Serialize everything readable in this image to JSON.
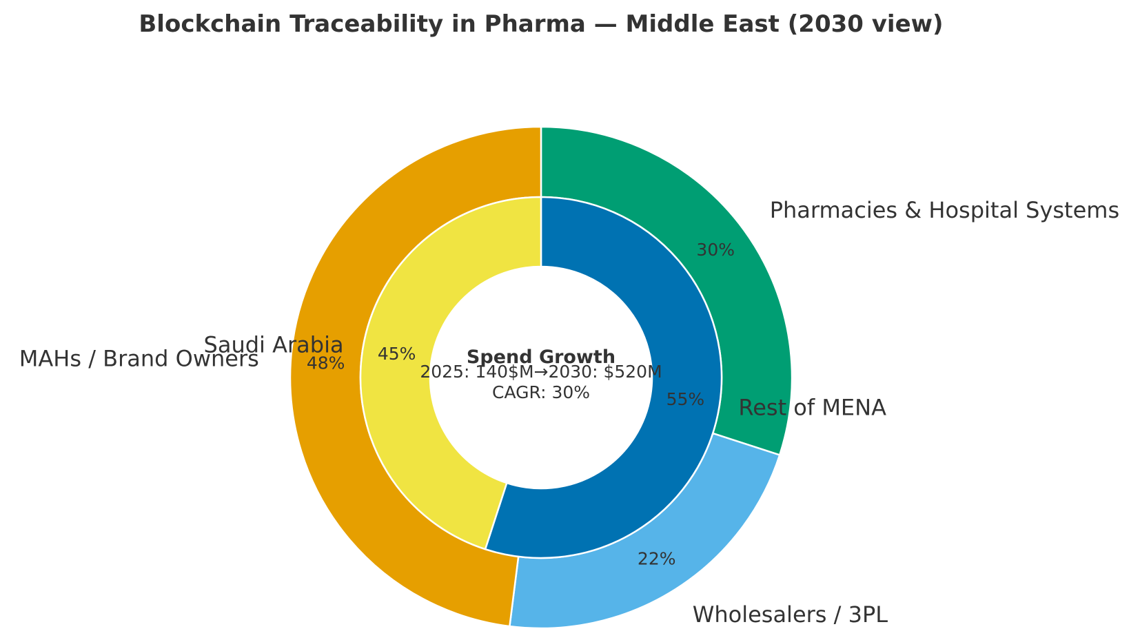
{
  "chart_data": {
    "type": "donut",
    "title": "Blockchain Traceability in Pharma — Middle East (2030 view)",
    "outer_ring": {
      "labels": [
        "Pharmacies & Hospital Systems",
        "Wholesalers / 3PL",
        "MAHs / Brand Owners"
      ],
      "values": [
        30,
        22,
        48
      ],
      "pct_labels": [
        "30%",
        "22%",
        "48%"
      ],
      "colors": [
        "#009E73",
        "#56B4E9",
        "#E69F00"
      ]
    },
    "inner_ring": {
      "labels": [
        "Rest of MENA",
        "Saudi Arabia"
      ],
      "values": [
        55,
        45
      ],
      "pct_labels": [
        "55%",
        "45%"
      ],
      "colors": [
        "#0072B2",
        "#F0E442"
      ]
    },
    "center": {
      "title": "Spend Growth",
      "line1": "2025: 140$M→2030: $520M",
      "line2": "CAGR: 30%"
    }
  }
}
